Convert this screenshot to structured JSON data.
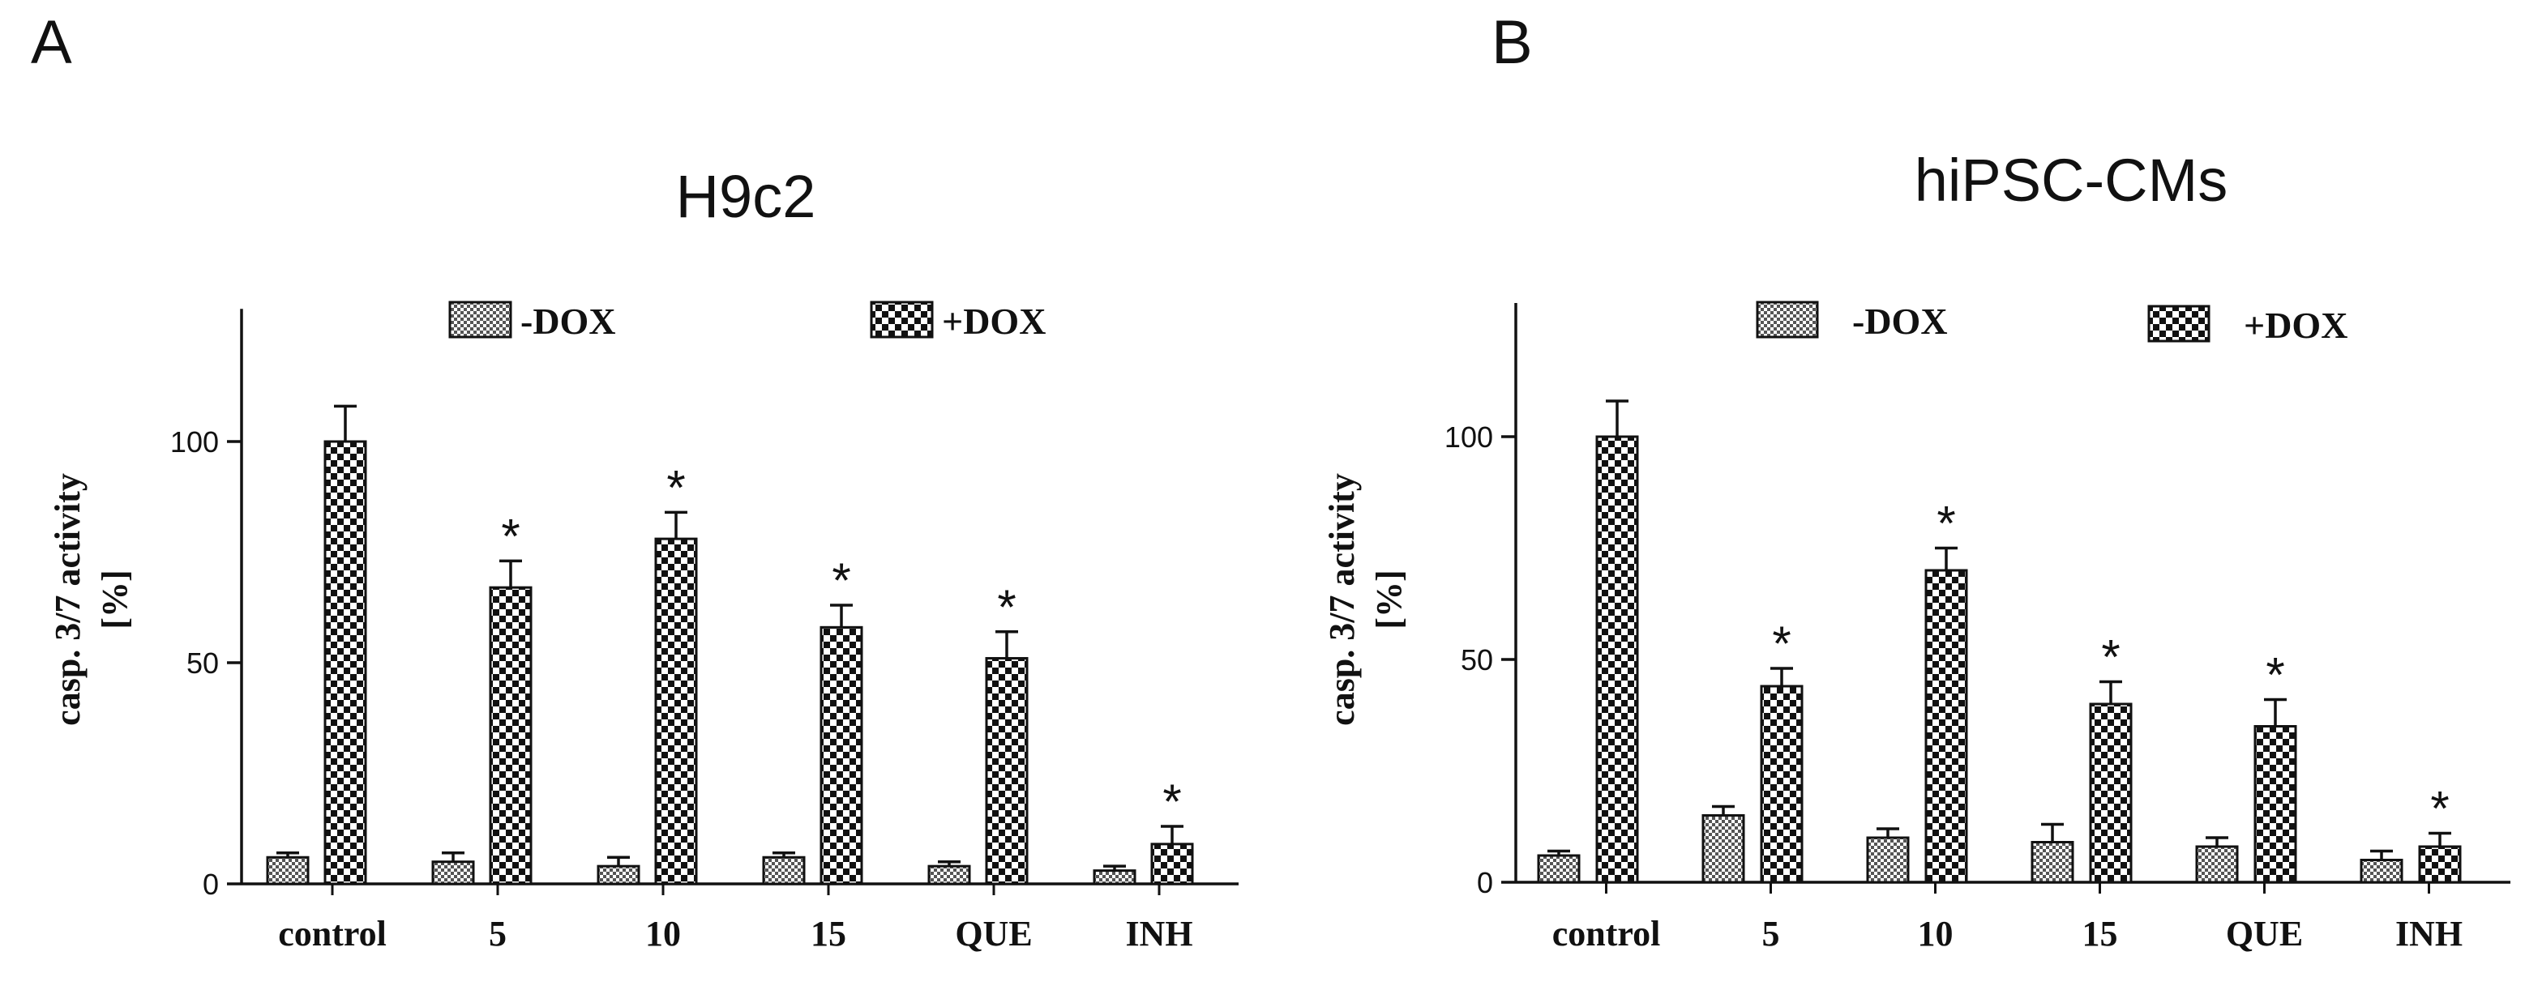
{
  "chart_data": [
    {
      "panel_label": "A",
      "type": "bar",
      "title": "H9c2",
      "ylabel_line1": "casp. 3/7 activity",
      "ylabel_line2": "[%]",
      "xlabel": "",
      "ylim": [
        0,
        130
      ],
      "yticks": [
        0,
        50,
        100
      ],
      "grid": false,
      "legend_position": "top",
      "categories": [
        "control",
        "5",
        "10",
        "15",
        "QUE",
        "INH"
      ],
      "series": [
        {
          "name": "-DOX",
          "pattern": "fine-check",
          "values": [
            6,
            5,
            4,
            6,
            4,
            3
          ],
          "errors": [
            1,
            2,
            2,
            1,
            1,
            1
          ]
        },
        {
          "name": "+DOX",
          "pattern": "coarse-check",
          "values": [
            100,
            67,
            78,
            58,
            51,
            9
          ],
          "errors": [
            8,
            6,
            6,
            5,
            6,
            4
          ]
        }
      ],
      "significance": [
        "",
        "*",
        "*",
        "*",
        "*",
        "*"
      ]
    },
    {
      "panel_label": "B",
      "type": "bar",
      "title": "hiPSC-CMs",
      "ylabel_line1": "casp. 3/7 activity",
      "ylabel_line2": "[%]",
      "xlabel": "",
      "ylim": [
        0,
        130
      ],
      "yticks": [
        0,
        50,
        100
      ],
      "grid": false,
      "legend_position": "top",
      "categories": [
        "control",
        "5",
        "10",
        "15",
        "QUE",
        "INH"
      ],
      "series": [
        {
          "name": "-DOX",
          "pattern": "fine-check",
          "values": [
            6,
            15,
            10,
            9,
            8,
            5
          ],
          "errors": [
            1,
            2,
            2,
            4,
            2,
            2
          ]
        },
        {
          "name": "+DOX",
          "pattern": "coarse-check",
          "values": [
            100,
            44,
            70,
            40,
            35,
            8
          ],
          "errors": [
            8,
            4,
            5,
            5,
            6,
            3
          ]
        }
      ],
      "significance": [
        "",
        "*",
        "*",
        "*",
        "*",
        "*"
      ]
    }
  ]
}
